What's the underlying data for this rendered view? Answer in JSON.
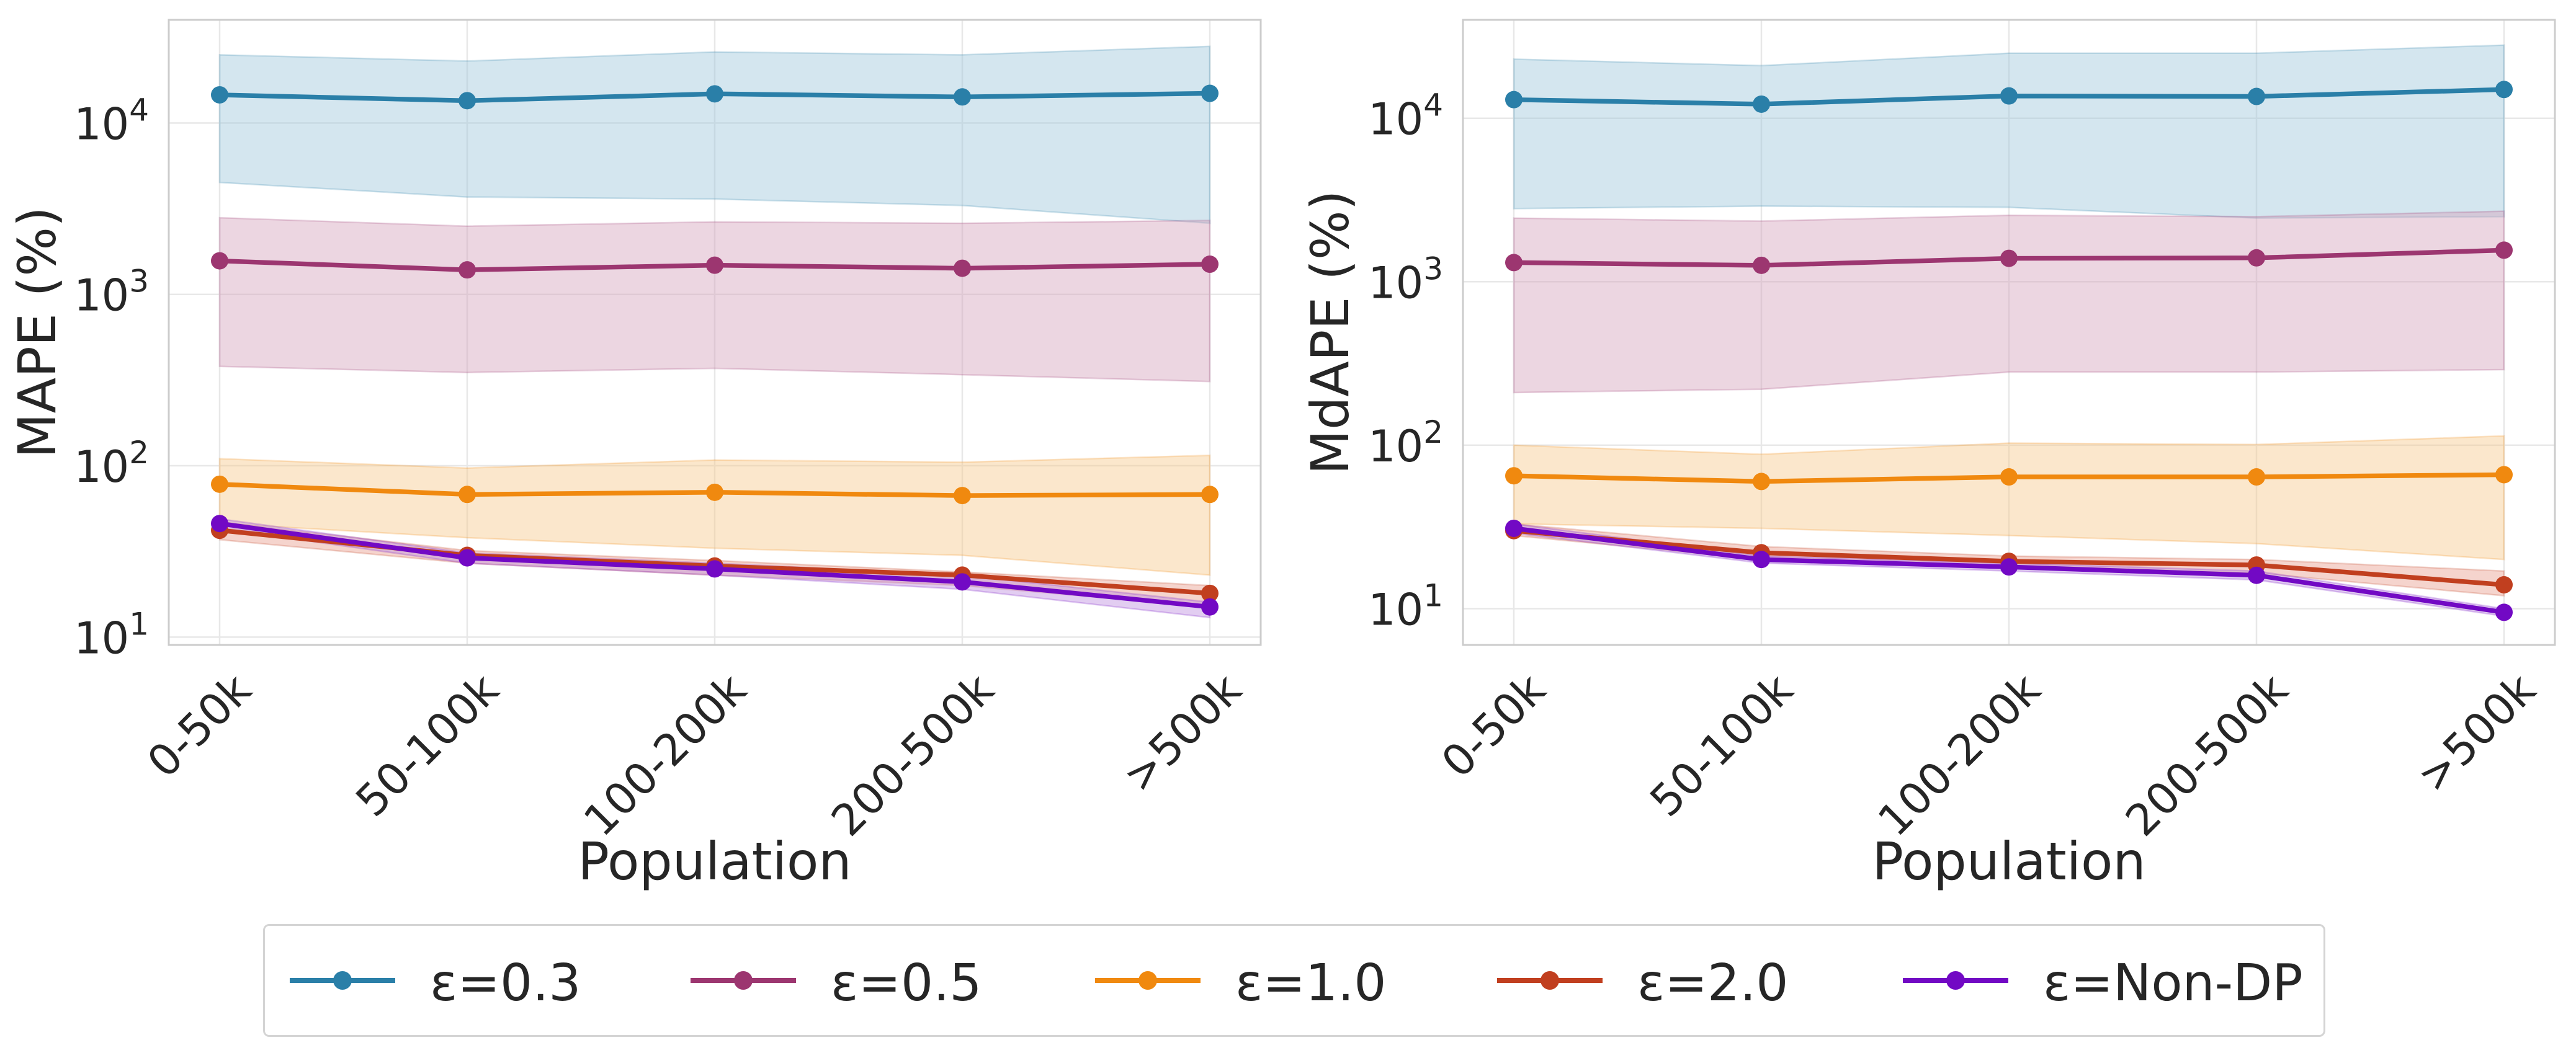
{
  "chart_data": [
    {
      "type": "line",
      "title": "",
      "xlabel": "Population",
      "ylabel": "MAPE (%)",
      "yscale": "log",
      "ylim": [
        9,
        40000
      ],
      "yticks": [
        10,
        100,
        1000,
        10000
      ],
      "ytick_labels": [
        {
          "base": "10",
          "exp": "1"
        },
        {
          "base": "10",
          "exp": "2"
        },
        {
          "base": "10",
          "exp": "3"
        },
        {
          "base": "10",
          "exp": "4"
        }
      ],
      "categories": [
        "0-50k",
        "50-100k",
        "100-200k",
        "200-500k",
        ">500k"
      ],
      "grid": true,
      "series": [
        {
          "name": "ε=0.3",
          "color": "#2a7fa8",
          "fill": "#9fc7dc",
          "values": [
            14600,
            13500,
            14800,
            14200,
            14900
          ],
          "band_low": [
            4500,
            3700,
            3600,
            3300,
            2600
          ],
          "band_high": [
            25000,
            23000,
            26000,
            25000,
            28000
          ]
        },
        {
          "name": "ε=0.5",
          "color": "#9c3670",
          "fill": "#d4a3bd",
          "values": [
            1570,
            1390,
            1480,
            1420,
            1500
          ],
          "band_low": [
            380,
            350,
            370,
            340,
            310
          ],
          "band_high": [
            2800,
            2500,
            2650,
            2600,
            2700
          ]
        },
        {
          "name": "ε=1.0",
          "color": "#f0890f",
          "fill": "#f7c98d",
          "values": [
            78,
            68,
            70,
            67,
            68
          ],
          "band_low": [
            46,
            38,
            33,
            30,
            23
          ],
          "band_high": [
            110,
            97,
            108,
            105,
            115
          ]
        },
        {
          "name": "ε=2.0",
          "color": "#c13f1f",
          "fill": "#e8a090",
          "values": [
            42,
            30,
            26,
            23,
            18
          ],
          "band_low": [
            37,
            27,
            23,
            20,
            15
          ],
          "band_high": [
            47,
            32,
            28,
            24,
            20
          ]
        },
        {
          "name": "ε=Non-DP",
          "color": "#7209c4",
          "fill": "#bf90e0",
          "values": [
            46,
            29,
            25,
            21,
            15
          ],
          "band_low": [
            43,
            27,
            23,
            19,
            13
          ],
          "band_high": [
            49,
            31,
            27,
            23,
            16
          ]
        }
      ]
    },
    {
      "type": "line",
      "title": "",
      "xlabel": "Population",
      "ylabel": "MdAPE (%)",
      "yscale": "log",
      "ylim": [
        6,
        40000
      ],
      "yticks": [
        10,
        100,
        1000,
        10000
      ],
      "ytick_labels": [
        {
          "base": "10",
          "exp": "1"
        },
        {
          "base": "10",
          "exp": "2"
        },
        {
          "base": "10",
          "exp": "3"
        },
        {
          "base": "10",
          "exp": "4"
        }
      ],
      "categories": [
        "0-50k",
        "50-100k",
        "100-200k",
        "200-500k",
        ">500k"
      ],
      "grid": true,
      "series": [
        {
          "name": "ε=0.3",
          "color": "#2a7fa8",
          "fill": "#9fc7dc",
          "values": [
            13000,
            12200,
            13700,
            13600,
            15000
          ],
          "band_low": [
            2800,
            2900,
            2850,
            2450,
            2500
          ],
          "band_high": [
            23000,
            21000,
            25000,
            25000,
            28000
          ]
        },
        {
          "name": "ε=0.5",
          "color": "#9c3670",
          "fill": "#d4a3bd",
          "values": [
            1310,
            1260,
            1390,
            1400,
            1560
          ],
          "band_low": [
            210,
            220,
            280,
            280,
            290
          ],
          "band_high": [
            2450,
            2350,
            2550,
            2500,
            2700
          ]
        },
        {
          "name": "ε=1.0",
          "color": "#f0890f",
          "fill": "#f7c98d",
          "values": [
            65,
            60,
            64,
            64,
            66
          ],
          "band_low": [
            33,
            31,
            28,
            25,
            20
          ],
          "band_high": [
            100,
            88,
            103,
            101,
            114
          ]
        },
        {
          "name": "ε=2.0",
          "color": "#c13f1f",
          "fill": "#e8a090",
          "values": [
            30,
            22,
            19.5,
            18.5,
            14
          ],
          "band_low": [
            28,
            20,
            18,
            16.5,
            12
          ],
          "band_high": [
            33,
            24,
            21,
            20,
            17
          ]
        },
        {
          "name": "ε=Non-DP",
          "color": "#7209c4",
          "fill": "#bf90e0",
          "values": [
            31,
            20,
            18,
            16,
            9.5
          ],
          "band_low": [
            29,
            19,
            17,
            15,
            9
          ],
          "band_high": [
            33,
            21,
            19,
            17,
            10
          ]
        }
      ]
    }
  ],
  "legend": {
    "location": "bottom-center",
    "items": [
      {
        "label": "ε=0.3",
        "color": "#2a7fa8"
      },
      {
        "label": "ε=0.5",
        "color": "#9c3670"
      },
      {
        "label": "ε=1.0",
        "color": "#f0890f"
      },
      {
        "label": "ε=2.0",
        "color": "#c13f1f"
      },
      {
        "label": "ε=Non-DP",
        "color": "#7209c4"
      }
    ]
  }
}
